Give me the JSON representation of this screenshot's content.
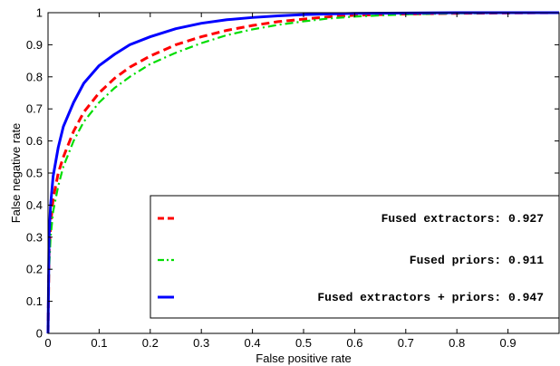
{
  "chart_data": {
    "type": "line",
    "title": "",
    "xlabel": "False positive rate",
    "ylabel": "False negative rate",
    "xlim": [
      0,
      1
    ],
    "ylim": [
      0,
      1
    ],
    "xticks": [
      0,
      0.1,
      0.2,
      0.3,
      0.4,
      0.5,
      0.6,
      0.7,
      0.8,
      0.9
    ],
    "xtick_labels": [
      "0",
      "0.1",
      "0.2",
      "0.3",
      "0.4",
      "0.5",
      "0.6",
      "0.7",
      "0.8",
      "0.9"
    ],
    "yticks": [
      0,
      0.1,
      0.2,
      0.3,
      0.4,
      0.5,
      0.6,
      0.7,
      0.8,
      0.9,
      1
    ],
    "ytick_labels": [
      "0",
      "0.1",
      "0.2",
      "0.3",
      "0.4",
      "0.5",
      "0.6",
      "0.7",
      "0.8",
      "0.9",
      "1"
    ],
    "grid": false,
    "legend_position": "bottom-right",
    "series": [
      {
        "name": "Fused extractors: 0.927",
        "color": "#ff0000",
        "dash": "dashed",
        "x": [
          0,
          0.002,
          0.005,
          0.01,
          0.02,
          0.03,
          0.05,
          0.07,
          0.1,
          0.13,
          0.16,
          0.2,
          0.25,
          0.3,
          0.35,
          0.4,
          0.45,
          0.5,
          0.55,
          0.6,
          0.7,
          0.8,
          0.9,
          1.0
        ],
        "y": [
          0,
          0.25,
          0.34,
          0.42,
          0.5,
          0.55,
          0.63,
          0.69,
          0.75,
          0.795,
          0.83,
          0.865,
          0.9,
          0.925,
          0.945,
          0.96,
          0.972,
          0.98,
          0.987,
          0.992,
          0.996,
          0.998,
          0.999,
          1.0
        ]
      },
      {
        "name": "Fused priors: 0.911",
        "color": "#00dd00",
        "dash": "dashdot",
        "x": [
          0,
          0.002,
          0.005,
          0.01,
          0.02,
          0.03,
          0.05,
          0.07,
          0.1,
          0.13,
          0.16,
          0.2,
          0.25,
          0.3,
          0.35,
          0.4,
          0.45,
          0.5,
          0.55,
          0.6,
          0.7,
          0.8,
          0.9,
          1.0
        ],
        "y": [
          0,
          0.2,
          0.3,
          0.38,
          0.46,
          0.52,
          0.6,
          0.66,
          0.72,
          0.765,
          0.8,
          0.84,
          0.875,
          0.905,
          0.93,
          0.948,
          0.962,
          0.973,
          0.982,
          0.988,
          0.995,
          0.998,
          0.999,
          1.0
        ]
      },
      {
        "name": "Fused extractors + priors: 0.947",
        "color": "#0000ff",
        "dash": "solid",
        "x": [
          0,
          0.002,
          0.005,
          0.01,
          0.02,
          0.03,
          0.05,
          0.07,
          0.1,
          0.13,
          0.16,
          0.2,
          0.25,
          0.3,
          0.35,
          0.4,
          0.45,
          0.5,
          0.55,
          0.6,
          0.7,
          0.8,
          0.9,
          1.0
        ],
        "y": [
          0,
          0.3,
          0.4,
          0.49,
          0.58,
          0.645,
          0.72,
          0.78,
          0.835,
          0.87,
          0.9,
          0.925,
          0.95,
          0.967,
          0.978,
          0.985,
          0.99,
          0.994,
          0.996,
          0.998,
          0.999,
          1.0,
          1.0,
          1.0
        ]
      }
    ]
  }
}
